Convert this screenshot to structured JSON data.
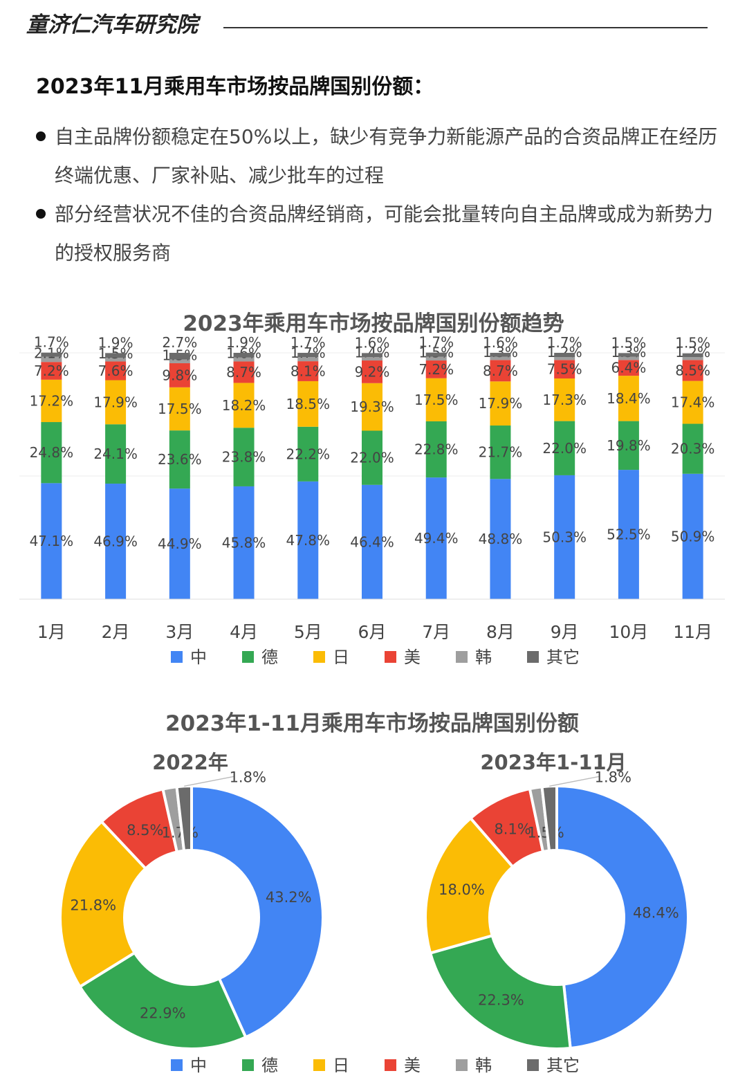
{
  "header": {
    "brand": "童济仁汽车研究院"
  },
  "page": {
    "heading": "2023年11月乘用车市场按品牌国别份额：",
    "bullets": [
      "自主品牌份额稳定在50%以上，缺少有竞争力新能源产品的合资品牌正在经历终端优惠、厂家补贴、减少批车的过程",
      "部分经营状况不佳的合资品牌经销商，可能会批量转向自主品牌或成为新势力的授权服务商"
    ]
  },
  "colors": {
    "中": "#4285f4",
    "德": "#34a853",
    "日": "#fbbc05",
    "美": "#ea4335",
    "韩": "#9e9e9e",
    "其它": "#6b6b6b"
  },
  "chart_data": [
    {
      "type": "bar",
      "stacked": true,
      "title": "2023年乘用车市场按品牌国别份额趋势",
      "categories": [
        "1月",
        "2月",
        "3月",
        "4月",
        "5月",
        "6月",
        "7月",
        "8月",
        "9月",
        "10月",
        "11月"
      ],
      "series": [
        {
          "name": "中",
          "values": [
            47.1,
            46.9,
            44.9,
            45.8,
            47.8,
            46.4,
            49.4,
            48.8,
            50.3,
            52.5,
            50.9
          ]
        },
        {
          "name": "德",
          "values": [
            24.8,
            24.1,
            23.6,
            23.8,
            22.2,
            22.0,
            22.8,
            21.7,
            22.0,
            19.8,
            20.3
          ]
        },
        {
          "name": "日",
          "values": [
            17.2,
            17.9,
            17.5,
            18.2,
            18.5,
            19.3,
            17.5,
            17.9,
            17.3,
            18.4,
            17.4
          ]
        },
        {
          "name": "美",
          "values": [
            7.2,
            7.6,
            9.8,
            8.7,
            8.1,
            9.2,
            7.2,
            8.7,
            7.5,
            6.4,
            8.5
          ]
        },
        {
          "name": "韩",
          "values": [
            2.1,
            1.5,
            1.5,
            1.6,
            1.7,
            1.4,
            1.5,
            1.3,
            1.2,
            1.3,
            1.2
          ]
        },
        {
          "name": "其它",
          "values": [
            1.7,
            1.9,
            2.7,
            1.9,
            1.7,
            1.6,
            1.7,
            1.6,
            1.7,
            1.5,
            1.5
          ]
        }
      ],
      "value_suffix": "%",
      "ylim": [
        0,
        100
      ],
      "legend": "bottom"
    },
    {
      "type": "pie",
      "donut": true,
      "title": "2023年1-11月乘用车市场按品牌国别份额",
      "legend": "bottom",
      "categories": [
        "中",
        "德",
        "日",
        "美",
        "韩",
        "其它"
      ],
      "pies": [
        {
          "name": "2022年",
          "values": [
            43.2,
            22.9,
            21.8,
            8.5,
            1.7,
            1.8
          ]
        },
        {
          "name": "2023年1-11月",
          "values": [
            48.4,
            22.3,
            18.0,
            8.1,
            1.5,
            1.8
          ]
        }
      ],
      "value_suffix": "%"
    }
  ]
}
